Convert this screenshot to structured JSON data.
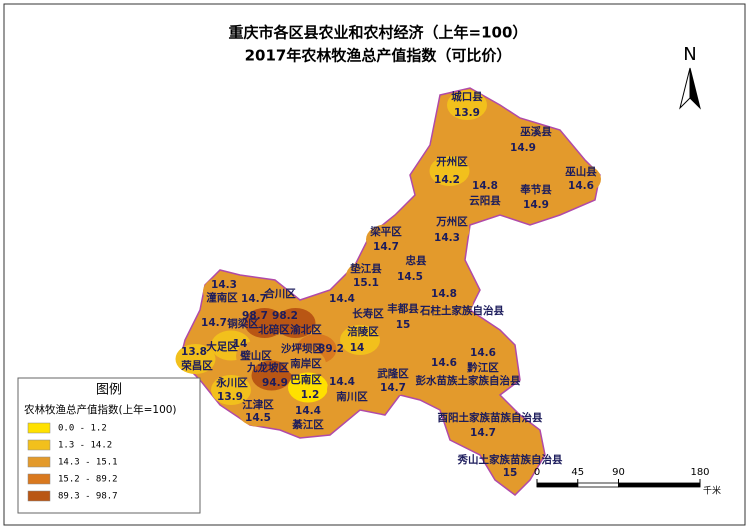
{
  "title": [
    "重庆市各区县农业和农村经济（上年=100）",
    "2017年农林牧渔总产值指数（可比价）"
  ],
  "north": "N",
  "districts": [
    {
      "name": "城口县",
      "value": 13.9,
      "color": "#f2c01c"
    },
    {
      "name": "巫溪县",
      "value": 14.9,
      "color": "#e39a2c"
    },
    {
      "name": "开州区",
      "value": 14.2,
      "color": "#f2c01c"
    },
    {
      "name": "巫山县",
      "value": 14.6,
      "color": "#e39a2c"
    },
    {
      "name": "云阳县",
      "value": 14.8,
      "color": "#e39a2c"
    },
    {
      "name": "奉节县",
      "value": 14.9,
      "color": "#e39a2c"
    },
    {
      "name": "万州区",
      "value": 14.3,
      "color": "#e39a2c"
    },
    {
      "name": "梁平区",
      "value": 14.7,
      "color": "#e39a2c"
    },
    {
      "name": "忠县",
      "value": 14.5,
      "color": "#e39a2c"
    },
    {
      "name": "垫江县",
      "value": 15.1,
      "color": "#e39a2c"
    },
    {
      "name": "长寿区",
      "value": 14.4,
      "color": "#e39a2c"
    },
    {
      "name": "丰都县",
      "value": 15,
      "color": "#e39a2c"
    },
    {
      "name": "石柱土家族自治县",
      "value": 14.8,
      "color": "#e39a2c"
    },
    {
      "name": "涪陵区",
      "value": 14,
      "color": "#f2c01c"
    },
    {
      "name": "潼南区",
      "value": 14.3,
      "color": "#e39a2c"
    },
    {
      "name": "合川区",
      "value": 14.7,
      "color": "#e39a2c"
    },
    {
      "name": "铜梁区",
      "value": 14.7,
      "color": "#e39a2c"
    },
    {
      "name": "北碚区",
      "value": 98.7,
      "color": "#b95614"
    },
    {
      "name": "渝北区",
      "value": 98.2,
      "color": "#b95614"
    },
    {
      "name": "大足区",
      "value": 14,
      "color": "#f2c01c"
    },
    {
      "name": "荣昌区",
      "value": 13.8,
      "color": "#f2c01c"
    },
    {
      "name": "璧山区",
      "color": "#e39a2c"
    },
    {
      "name": "沙坪坝区",
      "value": 89.2,
      "color": "#d9791f"
    },
    {
      "name": "九龙坡区",
      "value": 94.9,
      "color": "#b95614"
    },
    {
      "name": "南岸区",
      "color": "#e39a2c"
    },
    {
      "name": "巴南区",
      "value": 1.2,
      "color": "#ffe100"
    },
    {
      "name": "永川区",
      "value": 13.9,
      "color": "#f2c01c"
    },
    {
      "name": "江津区",
      "value": 14.5,
      "color": "#e39a2c"
    },
    {
      "name": "綦江区",
      "value": 14.4,
      "color": "#e39a2c"
    },
    {
      "name": "南川区",
      "value": 14.4,
      "color": "#e39a2c"
    },
    {
      "name": "武隆区",
      "value": 14.7,
      "color": "#e39a2c"
    },
    {
      "name": "彭水苗族土家族自治县",
      "value": 14.6,
      "color": "#e39a2c"
    },
    {
      "name": "黔江区",
      "value": 14.6,
      "color": "#e39a2c"
    },
    {
      "name": "酉阳土家族苗族自治县",
      "value": 14.7,
      "color": "#e39a2c"
    },
    {
      "name": "秀山土家族苗族自治县",
      "value": 15,
      "color": "#e39a2c"
    }
  ],
  "legend": {
    "title": "图例",
    "subtitle": "农林牧渔总产值指数(上年=100)",
    "classes": [
      {
        "label": "0.0 - 1.2",
        "color": "#ffe100"
      },
      {
        "label": "1.3 - 14.2",
        "color": "#f2c01c"
      },
      {
        "label": "14.3 - 15.1",
        "color": "#e39a2c"
      },
      {
        "label": "15.2 - 89.2",
        "color": "#d9791f"
      },
      {
        "label": "89.3 - 98.7",
        "color": "#b95614"
      }
    ]
  },
  "scale_bar": {
    "ticks": [
      0,
      45,
      90,
      180
    ],
    "unit": "千米"
  }
}
